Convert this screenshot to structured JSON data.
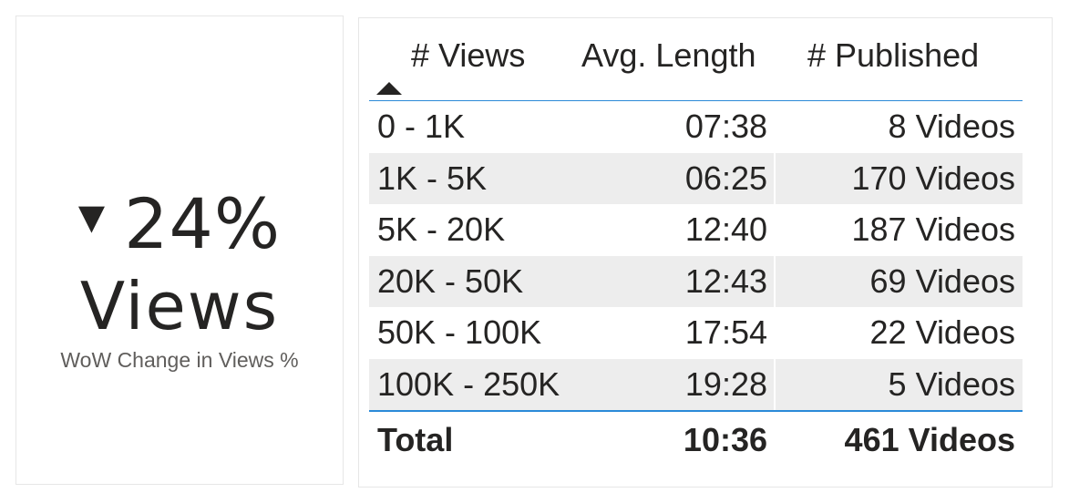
{
  "kpi": {
    "value": "24%",
    "unit": "Views",
    "caption": "WoW Change in Views %",
    "direction_icon": "triangle-down-icon"
  },
  "matrix": {
    "columns": [
      "# Views",
      "Avg. Length",
      "# Published"
    ],
    "sort_icon": "sort-ascending-icon",
    "rows": [
      {
        "views": "0 - 1K",
        "avg_length": "07:38",
        "published": "8 Videos"
      },
      {
        "views": "1K - 5K",
        "avg_length": "06:25",
        "published": "170 Videos"
      },
      {
        "views": "5K - 20K",
        "avg_length": "12:40",
        "published": "187 Videos"
      },
      {
        "views": "20K - 50K",
        "avg_length": "12:43",
        "published": "69 Videos"
      },
      {
        "views": "50K - 100K",
        "avg_length": "17:54",
        "published": "22 Videos"
      },
      {
        "views": "100K - 250K",
        "avg_length": "19:28",
        "published": "5 Videos"
      }
    ],
    "total": {
      "label": "Total",
      "avg_length": "10:36",
      "published": "461 Videos"
    },
    "colors": {
      "accent": "#2b8ad8",
      "band": "#ededed"
    }
  }
}
